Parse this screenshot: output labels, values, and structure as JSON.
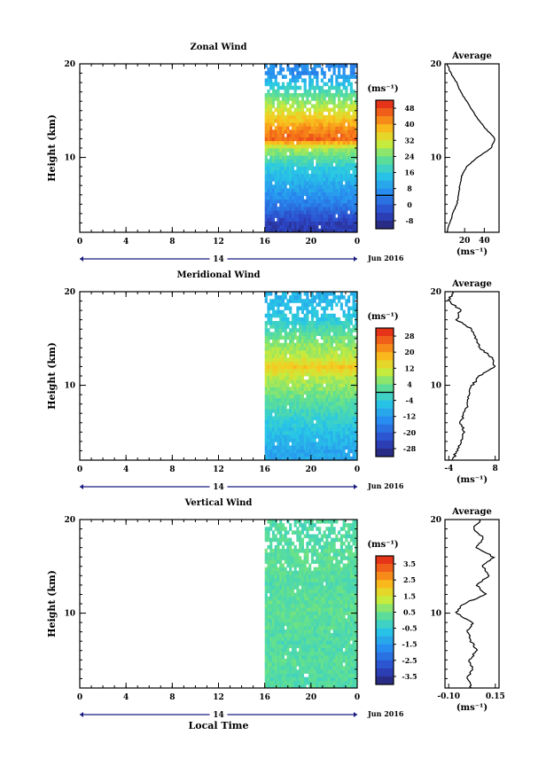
{
  "chart_data": [
    {
      "type": "heatmap",
      "title": "Zonal Wind",
      "ylabel": "Height (km)",
      "xlim": [
        0,
        24
      ],
      "ylim": [
        2,
        20
      ],
      "x_ticks": [
        "0",
        "4",
        "8",
        "12",
        "16",
        "20",
        "0"
      ],
      "y_ticks": [
        "20",
        "10"
      ],
      "date_axis": {
        "day": "14",
        "month_label": "Jun 2016"
      },
      "colorbar": {
        "unit": "(ms⁻¹)",
        "ticks": [
          "48",
          "40",
          "32",
          "24",
          "16",
          "8",
          "0",
          "-8"
        ],
        "range": [
          -12,
          52
        ]
      },
      "data_time_range": [
        16,
        24
      ],
      "field": {
        "heights": [
          3,
          5,
          7,
          9,
          11,
          12,
          13,
          15,
          17,
          19
        ],
        "values": [
          -6,
          4,
          10,
          16,
          28,
          46,
          42,
          32,
          20,
          6
        ]
      },
      "average_profile": {
        "title": "Average",
        "xlabel": "(ms⁻¹)",
        "x_ticks": [
          "20",
          "40"
        ],
        "xlim": [
          0,
          55
        ],
        "y_ticks": [
          "20",
          "10"
        ],
        "height": [
          2,
          3,
          4,
          5,
          6,
          7,
          8,
          9,
          10,
          11,
          12,
          13,
          14,
          15,
          16,
          17,
          18,
          19,
          20
        ],
        "value": [
          2,
          5,
          8,
          12,
          14,
          15,
          17,
          22,
          33,
          47,
          51,
          42,
          34,
          28,
          22,
          16,
          12,
          6,
          2
        ]
      }
    },
    {
      "type": "heatmap",
      "title": "Meridional Wind",
      "ylabel": "Height (km)",
      "xlim": [
        0,
        24
      ],
      "ylim": [
        2,
        20
      ],
      "x_ticks": [
        "0",
        "4",
        "8",
        "12",
        "16",
        "20",
        "0"
      ],
      "y_ticks": [
        "20",
        "10"
      ],
      "date_axis": {
        "day": "14",
        "month_label": "Jun 2016"
      },
      "colorbar": {
        "unit": "(ms⁻¹)",
        "ticks": [
          "28",
          "20",
          "12",
          "4",
          "-4",
          "-12",
          "-20",
          "-28"
        ],
        "range": [
          -32,
          32
        ]
      },
      "data_time_range": [
        16,
        24
      ],
      "field": {
        "heights": [
          3,
          5,
          7,
          9,
          11,
          12,
          13,
          15,
          17,
          19
        ],
        "values": [
          -10,
          -6,
          -2,
          4,
          10,
          16,
          10,
          4,
          -4,
          -8
        ]
      },
      "average_profile": {
        "title": "Average",
        "xlabel": "(ms⁻¹)",
        "x_ticks": [
          "-4",
          "8"
        ],
        "xlim": [
          -5,
          9
        ],
        "y_ticks": [
          "20",
          "10"
        ],
        "height": [
          2,
          3,
          4,
          5,
          6,
          7,
          8,
          9,
          10,
          11,
          12,
          13,
          14,
          15,
          16,
          17,
          18,
          19,
          20
        ],
        "value": [
          -3,
          -2,
          -1,
          0,
          -1,
          0,
          1,
          1,
          2,
          4,
          8,
          7,
          4,
          3,
          2,
          -2,
          -1,
          -4,
          -3
        ]
      }
    },
    {
      "type": "heatmap",
      "title": "Vertical Wind",
      "ylabel": "Height (km)",
      "xlabel": "Local Time",
      "xlim": [
        0,
        24
      ],
      "ylim": [
        2,
        20
      ],
      "x_ticks": [
        "0",
        "4",
        "8",
        "12",
        "16",
        "20",
        "0"
      ],
      "y_ticks": [
        "20",
        "10"
      ],
      "date_axis": {
        "day": "14",
        "month_label": "Jun 2016"
      },
      "colorbar": {
        "unit": "(ms⁻¹)",
        "ticks": [
          "3.5",
          "2.5",
          "1.5",
          "0.5",
          "-0.5",
          "-1.5",
          "-2.5",
          "-3.5"
        ],
        "range": [
          -4,
          4
        ]
      },
      "data_time_range": [
        16,
        24
      ],
      "field": {
        "heights": [
          3,
          5,
          7,
          9,
          11,
          12,
          13,
          15,
          17,
          19
        ],
        "values": [
          0.1,
          0.2,
          0.1,
          0.2,
          0.3,
          0.2,
          0.1,
          0.3,
          0.2,
          0.1
        ]
      },
      "average_profile": {
        "title": "Average",
        "xlabel": "(ms⁻¹)",
        "x_ticks": [
          "-0.10",
          "0.15"
        ],
        "xlim": [
          -0.12,
          0.17
        ],
        "y_ticks": [
          "20",
          "10"
        ],
        "height": [
          2,
          3,
          4,
          5,
          6,
          7,
          8,
          9,
          10,
          11,
          12,
          13,
          14,
          15,
          16,
          17,
          18,
          19,
          20
        ],
        "value": [
          0.02,
          0.0,
          0.03,
          0.01,
          0.05,
          0.02,
          0.0,
          0.03,
          -0.06,
          -0.02,
          0.1,
          0.05,
          0.12,
          0.08,
          0.14,
          0.05,
          0.09,
          0.03,
          0.07
        ]
      }
    }
  ]
}
